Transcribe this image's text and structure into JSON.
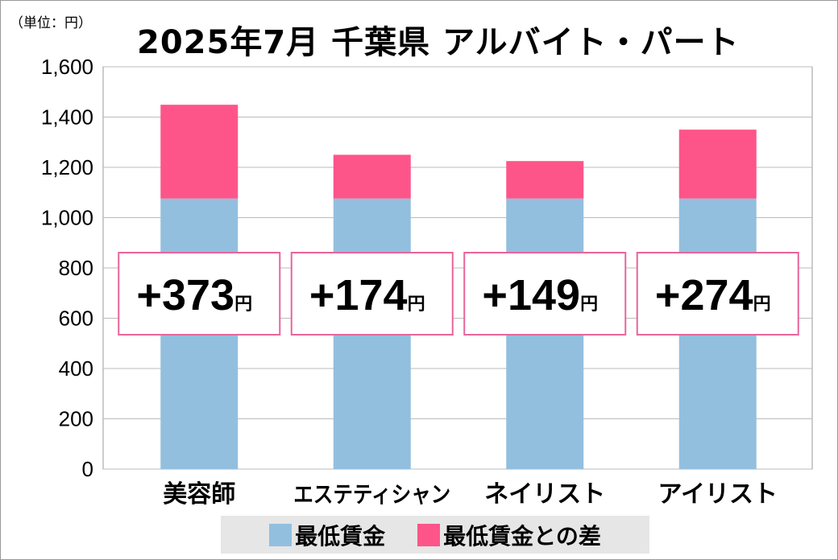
{
  "unit_label": "（単位：円）",
  "chart_data": {
    "type": "bar",
    "stacked": true,
    "title": "2025年7月 千葉県 アルバイト・パート",
    "categories": [
      "美容師",
      "エステティシャン",
      "ネイリスト",
      "アイリスト"
    ],
    "series": [
      {
        "name": "最低賃金",
        "color": "#93bfdf",
        "values": [
          1076,
          1076,
          1076,
          1076
        ]
      },
      {
        "name": "最低賃金との差",
        "color": "#fd558a",
        "values": [
          373,
          174,
          149,
          274
        ]
      }
    ],
    "data_labels": [
      "+373",
      "+174",
      "+149",
      "+274"
    ],
    "data_label_unit": "円",
    "ylim": [
      0,
      1600
    ],
    "yticks": [
      0,
      200,
      400,
      600,
      800,
      1000,
      1200,
      1400,
      1600
    ],
    "ytick_labels": [
      "0",
      "200",
      "400",
      "600",
      "800",
      "1,000",
      "1,200",
      "1,400",
      "1,600"
    ],
    "grid": true,
    "legend_position": "bottom"
  }
}
